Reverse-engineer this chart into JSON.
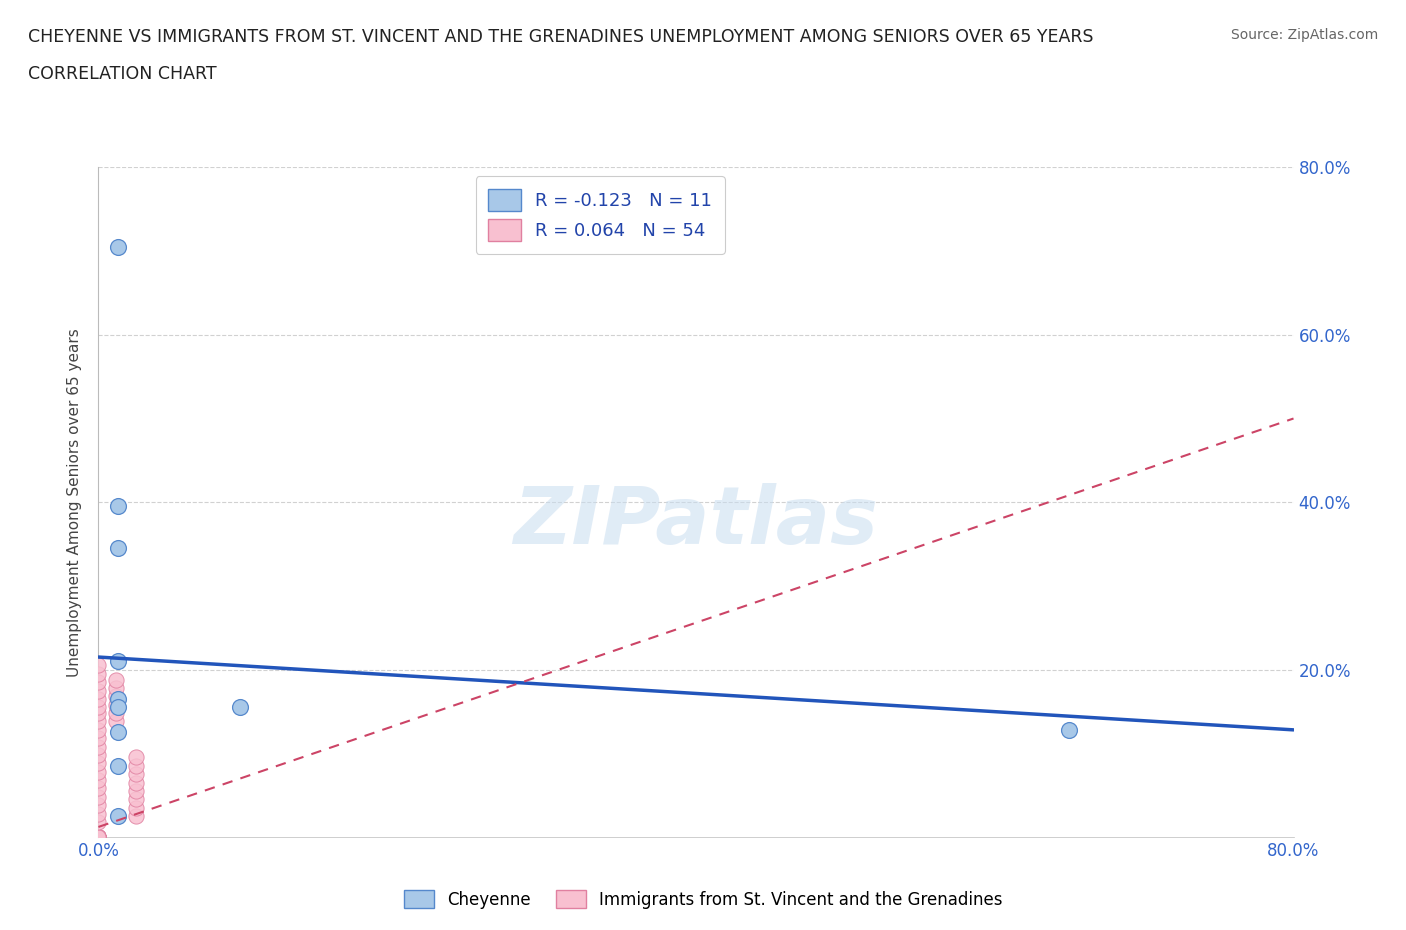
{
  "title_line1": "CHEYENNE VS IMMIGRANTS FROM ST. VINCENT AND THE GRENADINES UNEMPLOYMENT AMONG SENIORS OVER 65 YEARS",
  "title_line2": "CORRELATION CHART",
  "source": "Source: ZipAtlas.com",
  "ylabel": "Unemployment Among Seniors over 65 years",
  "xlim": [
    0.0,
    0.8
  ],
  "ylim": [
    0.0,
    0.8
  ],
  "cheyenne_color": "#a8c8e8",
  "cheyenne_edge": "#5588cc",
  "immigrants_color": "#f8c0d0",
  "immigrants_edge": "#e080a0",
  "cheyenne_R": -0.123,
  "cheyenne_N": 11,
  "immigrants_R": 0.064,
  "immigrants_N": 54,
  "cheyenne_line_color": "#2255bb",
  "immigrants_line_color": "#cc4466",
  "legend_label_cheyenne": "Cheyenne",
  "legend_label_immigrants": "Immigrants from St. Vincent and the Grenadines",
  "watermark": "ZIPatlas",
  "cheyenne_line_x0": 0.0,
  "cheyenne_line_y0": 0.215,
  "cheyenne_line_x1": 0.8,
  "cheyenne_line_y1": 0.128,
  "immigrants_line_x0": 0.0,
  "immigrants_line_y0": 0.012,
  "immigrants_line_x1": 0.8,
  "immigrants_line_y1": 0.5,
  "cheyenne_scatter_x": [
    0.013,
    0.013,
    0.013,
    0.013,
    0.013,
    0.013,
    0.013,
    0.095,
    0.65,
    0.013,
    0.013
  ],
  "cheyenne_scatter_y": [
    0.705,
    0.395,
    0.345,
    0.21,
    0.165,
    0.155,
    0.125,
    0.155,
    0.128,
    0.085,
    0.025
  ],
  "immigrants_scatter_x": [
    0.0,
    0.0,
    0.0,
    0.0,
    0.0,
    0.0,
    0.0,
    0.0,
    0.0,
    0.0,
    0.0,
    0.0,
    0.0,
    0.0,
    0.0,
    0.0,
    0.0,
    0.0,
    0.0,
    0.0,
    0.0,
    0.0,
    0.0,
    0.0,
    0.0,
    0.0,
    0.0,
    0.0,
    0.0,
    0.0,
    0.0,
    0.0,
    0.0,
    0.0,
    0.0,
    0.0,
    0.0,
    0.0,
    0.0,
    0.0,
    0.012,
    0.012,
    0.012,
    0.012,
    0.012,
    0.012,
    0.025,
    0.025,
    0.025,
    0.025,
    0.025,
    0.025,
    0.025,
    0.025
  ],
  "immigrants_scatter_y": [
    0.0,
    0.0,
    0.0,
    0.0,
    0.0,
    0.0,
    0.0,
    0.0,
    0.0,
    0.0,
    0.0,
    0.0,
    0.0,
    0.0,
    0.0,
    0.0,
    0.0,
    0.0,
    0.0,
    0.0,
    0.018,
    0.028,
    0.038,
    0.048,
    0.058,
    0.068,
    0.078,
    0.088,
    0.098,
    0.108,
    0.118,
    0.128,
    0.138,
    0.148,
    0.155,
    0.165,
    0.175,
    0.185,
    0.195,
    0.205,
    0.138,
    0.148,
    0.158,
    0.168,
    0.178,
    0.188,
    0.025,
    0.035,
    0.045,
    0.055,
    0.065,
    0.075,
    0.085,
    0.095
  ]
}
